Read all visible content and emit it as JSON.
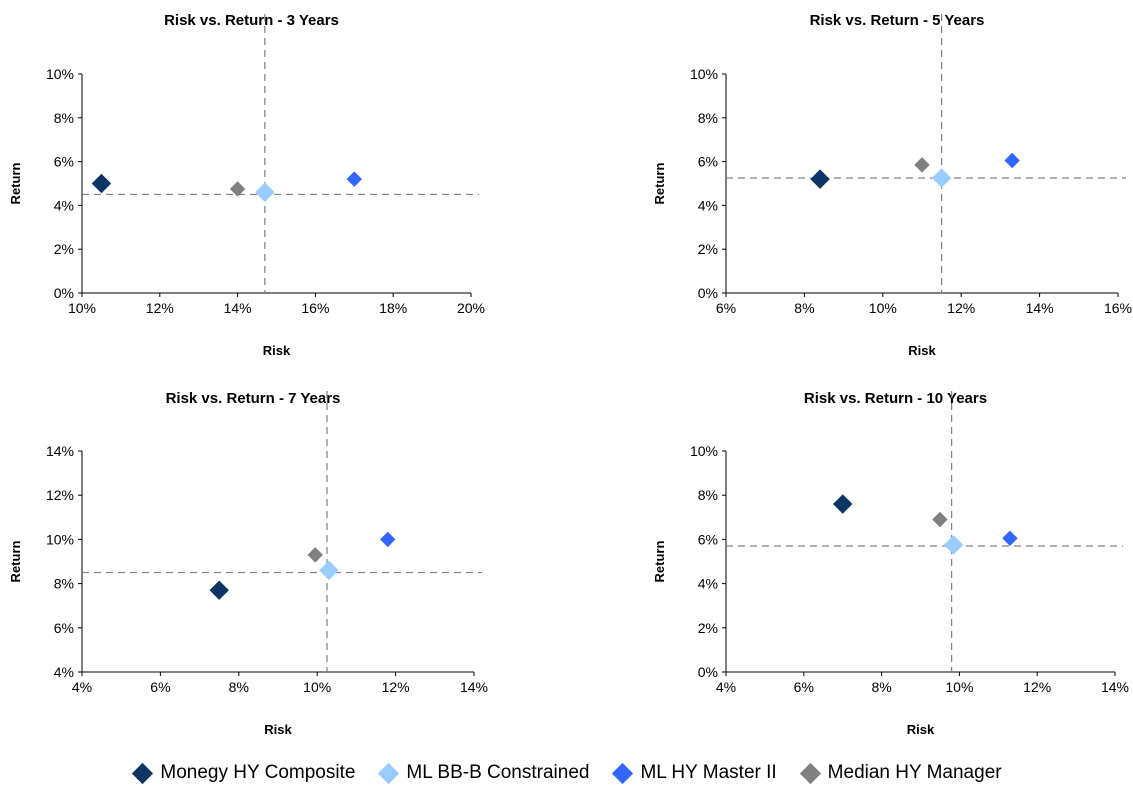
{
  "legend": [
    {
      "name": "Monegy HY Composite",
      "color": "#0b3563"
    },
    {
      "name": "ML BB-B Constrained",
      "color": "#99ccff"
    },
    {
      "name": "ML HY Master II",
      "color": "#3366ff"
    },
    {
      "name": "Median HY Manager",
      "color": "#808080"
    }
  ],
  "chart_data": [
    {
      "type": "scatter",
      "title": "Risk vs. Return - 3 Years",
      "xlabel": "Risk",
      "ylabel": "Return",
      "xlim": [
        10,
        20
      ],
      "ylim": [
        0,
        10
      ],
      "xticks": [
        "10%",
        "12%",
        "14%",
        "16%",
        "18%",
        "20%"
      ],
      "yticks": [
        "0%",
        "2%",
        "4%",
        "6%",
        "8%",
        "10%"
      ],
      "ref_lines": {
        "x": 14.7,
        "y": 4.5
      },
      "series": [
        {
          "name": "Monegy HY Composite",
          "x": 10.5,
          "y": 5.0
        },
        {
          "name": "ML BB-B Constrained",
          "x": 14.7,
          "y": 4.6
        },
        {
          "name": "ML HY Master II",
          "x": 17.0,
          "y": 5.2
        },
        {
          "name": "Median HY Manager",
          "x": 14.0,
          "y": 4.75
        }
      ]
    },
    {
      "type": "scatter",
      "title": "Risk vs. Return - 5 Years",
      "xlabel": "Risk",
      "ylabel": "Return",
      "xlim": [
        6,
        16
      ],
      "ylim": [
        0,
        10
      ],
      "xticks": [
        "6%",
        "8%",
        "10%",
        "12%",
        "14%",
        "16%"
      ],
      "yticks": [
        "0%",
        "2%",
        "4%",
        "6%",
        "8%",
        "10%"
      ],
      "ref_lines": {
        "x": 11.5,
        "y": 5.25
      },
      "series": [
        {
          "name": "Monegy HY Composite",
          "x": 8.4,
          "y": 5.2
        },
        {
          "name": "ML BB-B Constrained",
          "x": 11.5,
          "y": 5.25
        },
        {
          "name": "ML HY Master II",
          "x": 13.3,
          "y": 6.05
        },
        {
          "name": "Median HY Manager",
          "x": 11.0,
          "y": 5.85
        }
      ]
    },
    {
      "type": "scatter",
      "title": "Risk vs. Return - 7 Years",
      "xlabel": "Risk",
      "ylabel": "Return",
      "xlim": [
        4,
        14
      ],
      "ylim": [
        4,
        14
      ],
      "xticks": [
        "4%",
        "6%",
        "8%",
        "10%",
        "12%",
        "14%"
      ],
      "yticks": [
        "4%",
        "6%",
        "8%",
        "10%",
        "12%",
        "14%"
      ],
      "ref_lines": {
        "x": 10.25,
        "y": 8.5
      },
      "series": [
        {
          "name": "Monegy HY Composite",
          "x": 7.5,
          "y": 7.7
        },
        {
          "name": "ML BB-B Constrained",
          "x": 10.3,
          "y": 8.6
        },
        {
          "name": "ML HY Master II",
          "x": 11.8,
          "y": 10.0
        },
        {
          "name": "Median HY Manager",
          "x": 9.95,
          "y": 9.3
        }
      ]
    },
    {
      "type": "scatter",
      "title": "Risk vs. Return - 10 Years",
      "xlabel": "Risk",
      "ylabel": "Return",
      "xlim": [
        4,
        14
      ],
      "ylim": [
        0,
        10
      ],
      "xticks": [
        "4%",
        "6%",
        "8%",
        "10%",
        "12%",
        "14%"
      ],
      "yticks": [
        "0%",
        "2%",
        "4%",
        "6%",
        "8%",
        "10%"
      ],
      "ref_lines": {
        "x": 9.8,
        "y": 5.7
      },
      "series": [
        {
          "name": "Monegy HY Composite",
          "x": 7.0,
          "y": 7.6
        },
        {
          "name": "ML BB-B Constrained",
          "x": 9.85,
          "y": 5.75
        },
        {
          "name": "ML HY Master II",
          "x": 11.3,
          "y": 6.05
        },
        {
          "name": "Median HY Manager",
          "x": 9.5,
          "y": 6.9
        }
      ]
    }
  ]
}
